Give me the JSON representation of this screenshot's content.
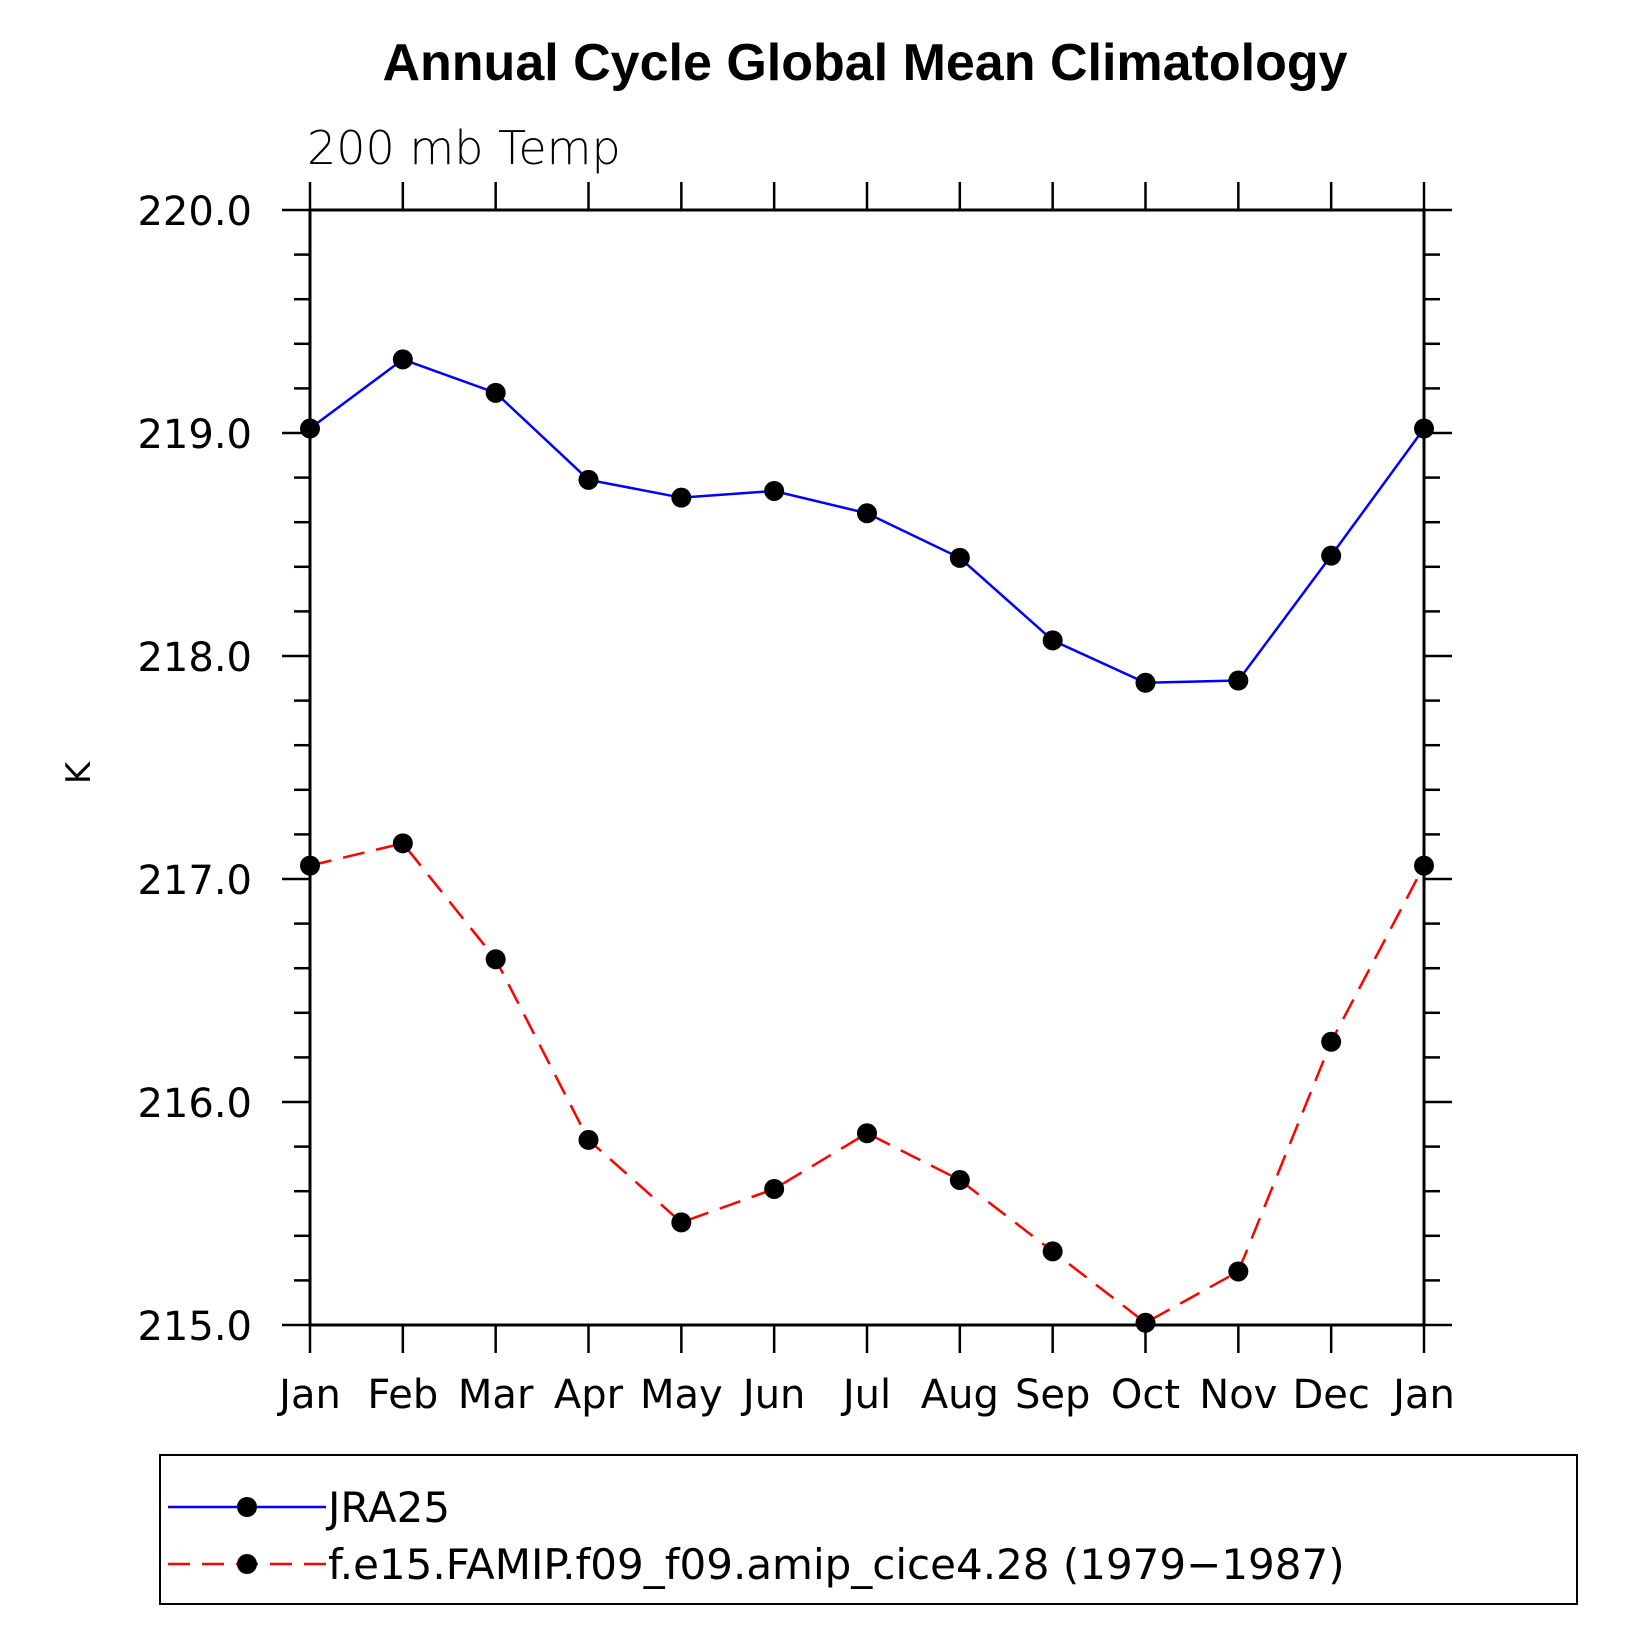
{
  "chart_data": {
    "type": "line",
    "title": "Annual Cycle Global Mean Climatology",
    "subtitle": "200 mb Temp",
    "xlabel": "",
    "ylabel": "K",
    "categories": [
      "Jan",
      "Feb",
      "Mar",
      "Apr",
      "May",
      "Jun",
      "Jul",
      "Aug",
      "Sep",
      "Oct",
      "Nov",
      "Dec",
      "Jan"
    ],
    "ylim": [
      215.0,
      220.0
    ],
    "yticks": [
      "215.0",
      "216.0",
      "217.0",
      "218.0",
      "219.0",
      "220.0"
    ],
    "ytick_values": [
      215.0,
      216.0,
      217.0,
      218.0,
      219.0,
      220.0
    ],
    "y_minor_step": 0.2,
    "grid": false,
    "legend_position": "bottom",
    "series": [
      {
        "name": "JRA25",
        "color": "#0000ff",
        "dash": "solid",
        "marker": "filled-circle",
        "values": [
          219.02,
          219.33,
          219.18,
          218.79,
          218.71,
          218.74,
          218.64,
          218.44,
          218.07,
          217.88,
          217.89,
          218.45,
          219.02
        ]
      },
      {
        "name": "f.e15.FAMIP.f09_f09.amip_cice4.28 (1979−1987)",
        "color": "#ff0000",
        "dash": "dashed",
        "marker": "filled-circle",
        "values": [
          217.06,
          217.16,
          216.64,
          215.83,
          215.46,
          215.61,
          215.86,
          215.65,
          215.33,
          215.01,
          215.24,
          216.27,
          217.06
        ]
      }
    ]
  }
}
